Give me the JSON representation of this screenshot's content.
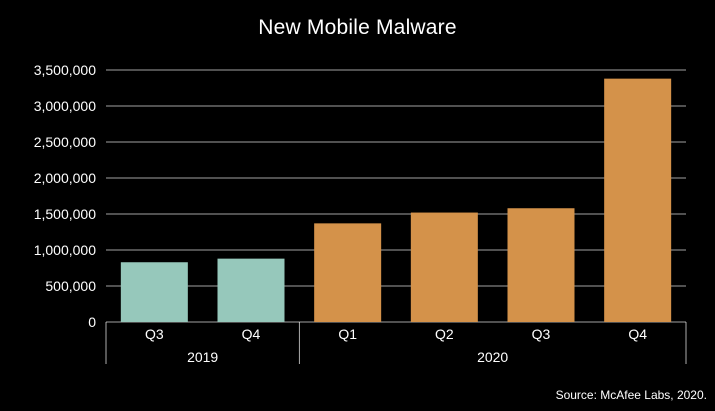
{
  "chart_data": {
    "type": "bar",
    "title": "New Mobile Malware",
    "xlabel": "",
    "ylabel": "",
    "ylim": [
      0,
      3500000
    ],
    "yticks": [
      0,
      500000,
      1000000,
      1500000,
      2000000,
      2500000,
      3000000,
      3500000
    ],
    "ytick_labels": [
      "0",
      "500,000",
      "1,000,000",
      "1,500,000",
      "2,000,000",
      "2,500,000",
      "3,000,000",
      "3,500,000"
    ],
    "categories": [
      "Q3",
      "Q4",
      "Q1",
      "Q2",
      "Q3",
      "Q4"
    ],
    "values": [
      830000,
      880000,
      1370000,
      1520000,
      1580000,
      3380000
    ],
    "groups": [
      {
        "label": "2019",
        "start": 0,
        "end": 1,
        "color": "#96c8bb"
      },
      {
        "label": "2020",
        "start": 2,
        "end": 5,
        "color": "#d4924a"
      }
    ],
    "grid": true,
    "legend": "none",
    "colors": {
      "background": "#000000",
      "gridline": "#ffffff",
      "text": "#ffffff"
    }
  },
  "source": "Source: McAfee Labs, 2020."
}
